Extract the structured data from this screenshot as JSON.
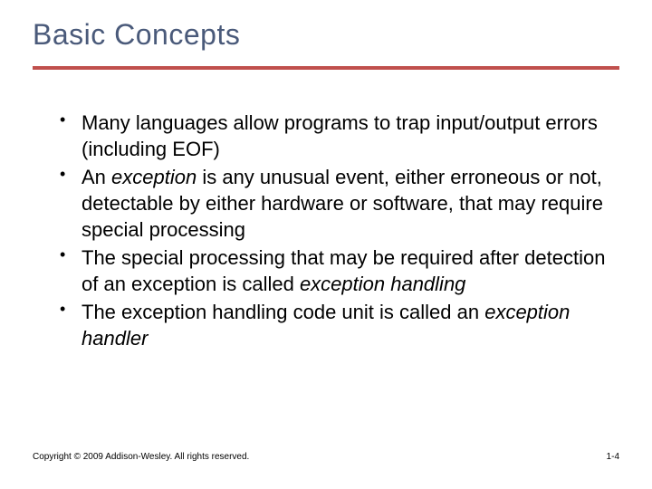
{
  "title": "Basic Concepts",
  "title_color": "#4a5a7a",
  "rule_color": "#c0504d",
  "bullets": [
    {
      "segments": [
        {
          "text": "Many languages allow programs to trap input/output errors (including EOF)",
          "italic": false
        }
      ]
    },
    {
      "segments": [
        {
          "text": "An ",
          "italic": false
        },
        {
          "text": "exception",
          "italic": true
        },
        {
          "text": " is any unusual event, either erroneous or not, detectable by either hardware or software, that may require special processing",
          "italic": false
        }
      ]
    },
    {
      "segments": [
        {
          "text": "The special processing that may be required after detection of an exception is called ",
          "italic": false
        },
        {
          "text": "exception handling",
          "italic": true
        }
      ]
    },
    {
      "segments": [
        {
          "text": "The exception handling code unit is called an ",
          "italic": false
        },
        {
          "text": "exception handler",
          "italic": true
        }
      ]
    }
  ],
  "footer": {
    "copyright": "Copyright © 2009 Addison-Wesley. All rights reserved.",
    "page": "1-4"
  }
}
